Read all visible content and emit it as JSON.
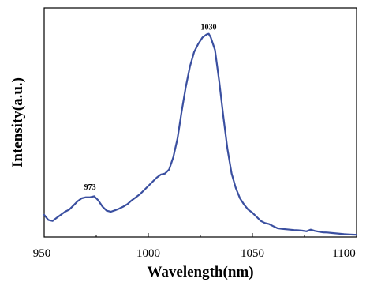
{
  "chart_data": {
    "type": "line",
    "title": "",
    "xlabel": "Wavelength(nm)",
    "ylabel": "Intensity(a.u.)",
    "xlim": [
      950,
      1100
    ],
    "ylim": [
      0,
      100
    ],
    "xticks": [
      950,
      1000,
      1050,
      1100
    ],
    "xtick_labels": [
      "950",
      "1000",
      "1050",
      "1100"
    ],
    "yticks_shown": false,
    "grid": false,
    "legend": "none",
    "color": "#3a4fa0",
    "annotations": [
      {
        "text": "973",
        "x": 972,
        "y": 20
      },
      {
        "text": "1030",
        "x": 1029,
        "y": 97.5
      }
    ],
    "series": [
      {
        "x": [
          950,
          952,
          954,
          956,
          958,
          960,
          962,
          964,
          966,
          968,
          970,
          972,
          974,
          976,
          978,
          980,
          982,
          984,
          986,
          988,
          990,
          992,
          994,
          996,
          998,
          1000,
          1002,
          1004,
          1006,
          1008,
          1010,
          1012,
          1014,
          1016,
          1018,
          1020,
          1022,
          1024,
          1026,
          1028,
          1029,
          1030,
          1032,
          1034,
          1036,
          1038,
          1040,
          1042,
          1044,
          1046,
          1048,
          1050,
          1052,
          1054,
          1056,
          1058,
          1060,
          1062,
          1064,
          1066,
          1068,
          1070,
          1072,
          1074,
          1076,
          1078,
          1080,
          1082,
          1084,
          1086,
          1088,
          1090,
          1092,
          1094,
          1096,
          1098,
          1100
        ],
        "y": [
          10,
          7.5,
          7.0,
          8.5,
          10,
          11.5,
          12.5,
          14.5,
          16.5,
          18,
          18.5,
          18.5,
          19,
          17,
          14,
          12,
          11.5,
          12.2,
          13,
          14,
          15.2,
          17,
          18.5,
          20,
          22,
          24,
          26,
          28,
          29.5,
          30,
          32,
          38,
          47,
          60,
          72,
          82,
          89,
          93,
          96,
          97.5,
          97.8,
          96,
          90,
          75,
          58,
          42,
          30,
          23,
          18,
          15,
          12.5,
          11,
          9,
          7,
          6,
          5.5,
          4.5,
          3.5,
          3.2,
          3.0,
          2.8,
          2.6,
          2.5,
          2.3,
          2.0,
          2.8,
          2.2,
          1.8,
          1.5,
          1.4,
          1.2,
          1.0,
          0.8,
          0.6,
          0.5,
          0.4,
          0.3
        ]
      }
    ]
  }
}
